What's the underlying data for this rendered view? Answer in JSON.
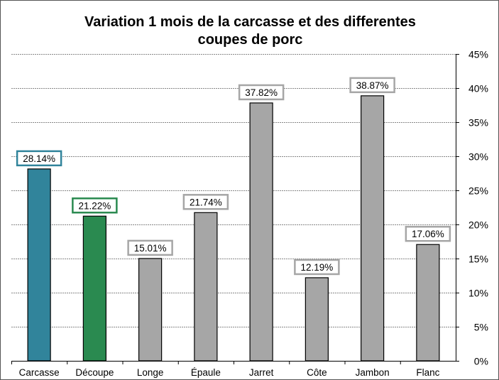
{
  "chart_data": {
    "type": "bar",
    "title_lines": [
      "Variation 1 mois de la carcasse et des differentes",
      "coupes de porc"
    ],
    "categories": [
      "Carcasse",
      "Découpe",
      "Longe",
      "Épaule",
      "Jarret",
      "Côte",
      "Jambon",
      "Flanc"
    ],
    "values": [
      28.14,
      21.22,
      15.01,
      21.74,
      37.82,
      12.19,
      38.87,
      17.06
    ],
    "data_labels": [
      "28.14%",
      "21.22%",
      "15.01%",
      "21.74%",
      "37.82%",
      "12.19%",
      "38.87%",
      "17.06%"
    ],
    "colors": [
      "#31849B",
      "#2A8A50",
      "#A6A6A6",
      "#A6A6A6",
      "#A6A6A6",
      "#A6A6A6",
      "#A6A6A6",
      "#A6A6A6"
    ],
    "label_border_colors": [
      "#31849B",
      "#2A8A50",
      "#A6A6A6",
      "#A6A6A6",
      "#A6A6A6",
      "#A6A6A6",
      "#A6A6A6",
      "#A6A6A6"
    ],
    "ylim": [
      0,
      45
    ],
    "yticks": [
      0,
      5,
      10,
      15,
      20,
      25,
      30,
      35,
      40,
      45
    ],
    "ytick_labels": [
      "0%",
      "5%",
      "10%",
      "15%",
      "20%",
      "25%",
      "30%",
      "35%",
      "40%",
      "45%"
    ],
    "y_axis_side": "right",
    "grid": true,
    "xlabel": "",
    "ylabel": ""
  }
}
